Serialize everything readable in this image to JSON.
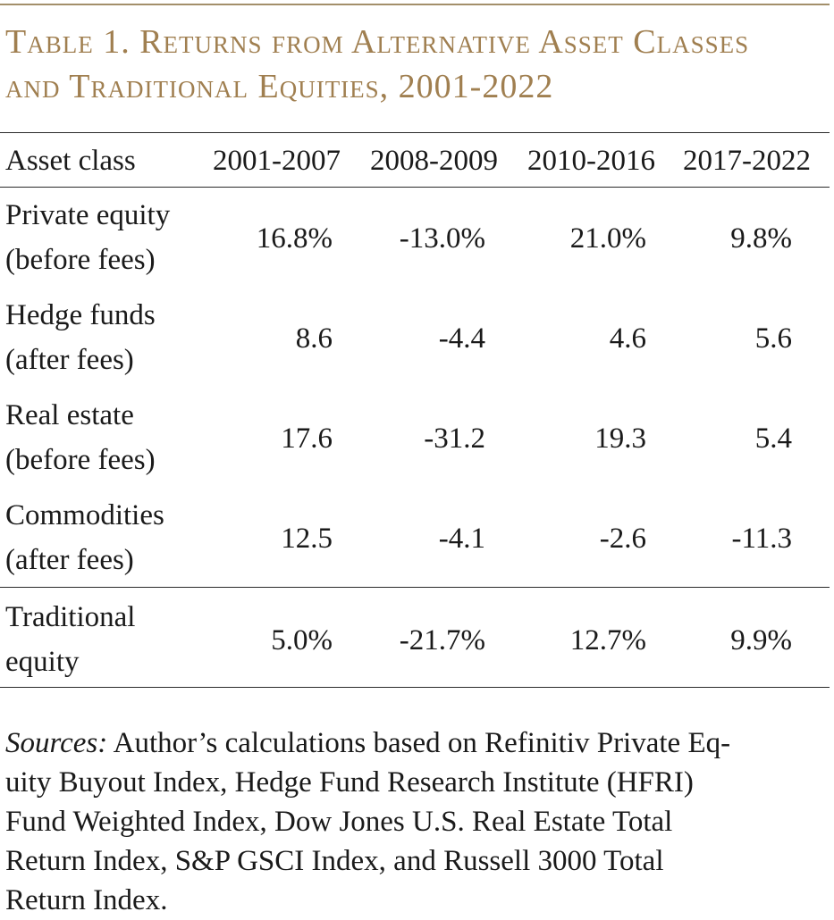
{
  "title": {
    "line1": "Table 1. Returns from Alternative Asset Classes",
    "line2": "and Traditional Equities, 2001-2022"
  },
  "table": {
    "headers": [
      "Asset class",
      "2001-2007",
      "2008-2009",
      "2010-2016",
      "2017-2022"
    ],
    "rows": [
      {
        "label_line1": "Private equity",
        "label_line2": "(before fees)",
        "values": [
          "16.8%",
          "-13.0%",
          "21.0%",
          "9.8%"
        ]
      },
      {
        "label_line1": "Hedge funds",
        "label_line2": "(after fees)",
        "values": [
          "8.6",
          "-4.4",
          "4.6",
          "5.6"
        ]
      },
      {
        "label_line1": "Real estate",
        "label_line2": "(before fees)",
        "values": [
          "17.6",
          "-31.2",
          "19.3",
          "5.4"
        ]
      },
      {
        "label_line1": "Commodities",
        "label_line2": "(after fees)",
        "values": [
          "12.5",
          "-4.1",
          "-2.6",
          "-11.3"
        ]
      },
      {
        "label_line1": "Traditional",
        "label_line2": "equity",
        "values": [
          "5.0%",
          "-21.7%",
          "12.7%",
          "9.9%"
        ]
      }
    ]
  },
  "notes": {
    "sources_label": "Sources:",
    "line1": " Author’s calculations based on Refinitiv Private Eq-",
    "line2": "uity Buyout Index, Hedge Fund Research Institute (HFRI)",
    "line3": "Fund Weighted Index, Dow Jones U.S. Real Estate Total",
    "line4": "Return Index, S&P GSCI Index, and Russell 3000 Total",
    "line5": "Return Index."
  },
  "colors": {
    "title": "#a07f50",
    "top_rule": "#a38f6a",
    "text": "#1a1a1a"
  }
}
